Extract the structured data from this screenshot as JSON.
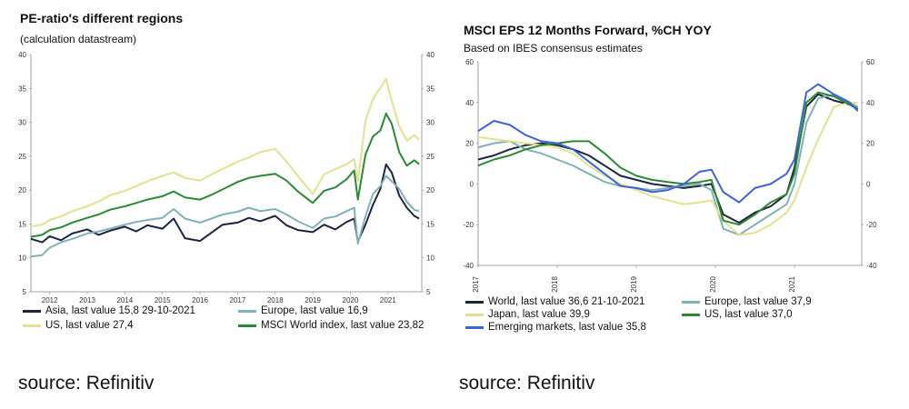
{
  "colors": {
    "asia": "#1c2440",
    "europe": "#7fb1b5",
    "us_left": "#e4e08e",
    "msci_world": "#2a8a33",
    "world": "#1c2440",
    "japan": "#e4e08e",
    "us_right": "#2a8a33",
    "emerging": "#3c64d8"
  },
  "left": {
    "title": "PE-ratio's different regions",
    "subtitle": "(calculation datastream)",
    "source": "source: Refinitiv"
  },
  "right": {
    "title": "MSCI EPS 12 Months Forward, %CH YOY",
    "subtitle": "Based on IBES consensus estimates",
    "source": "source: Refinitiv"
  },
  "chart_data": [
    {
      "type": "line",
      "title": "PE-ratio's different regions",
      "subtitle": "(calculation datastream)",
      "ylim": [
        5,
        40
      ],
      "xlim": [
        2011.5,
        2021.9
      ],
      "y_ticks": [
        5,
        10,
        15,
        20,
        25,
        30,
        35,
        40
      ],
      "x_ticks": [
        2012,
        2013,
        2014,
        2015,
        2016,
        2017,
        2018,
        2019,
        2020,
        2021
      ],
      "y_axis_sides": "both",
      "grid": false,
      "legend_position": "bottom",
      "series": [
        {
          "name": "Asia, last value 15,8 29-10-2021",
          "color_key": "asia",
          "x": [
            2011.5,
            2011.8,
            2012.0,
            2012.3,
            2012.6,
            2013.0,
            2013.3,
            2013.6,
            2014.0,
            2014.3,
            2014.6,
            2015.0,
            2015.3,
            2015.6,
            2016.0,
            2016.3,
            2016.6,
            2017.0,
            2017.3,
            2017.6,
            2018.0,
            2018.3,
            2018.6,
            2019.0,
            2019.3,
            2019.6,
            2019.9,
            2020.1,
            2020.2,
            2020.4,
            2020.6,
            2020.8,
            2020.95,
            2021.1,
            2021.3,
            2021.5,
            2021.7,
            2021.83
          ],
          "y": [
            12.8,
            12.3,
            13.2,
            12.6,
            13.6,
            14.2,
            13.4,
            14.0,
            14.6,
            13.9,
            14.8,
            14.3,
            15.8,
            12.9,
            12.5,
            13.7,
            14.9,
            15.2,
            15.9,
            15.4,
            16.2,
            14.8,
            14.1,
            13.8,
            14.9,
            14.2,
            15.3,
            15.8,
            12.4,
            14.9,
            17.8,
            20.2,
            23.8,
            22.6,
            19.2,
            17.4,
            16.2,
            15.8
          ]
        },
        {
          "name": "Europe, last value 16,9",
          "color_key": "europe",
          "x": [
            2011.5,
            2011.8,
            2012.0,
            2012.3,
            2012.6,
            2013.0,
            2013.3,
            2013.6,
            2014.0,
            2014.3,
            2014.6,
            2015.0,
            2015.3,
            2015.6,
            2016.0,
            2016.3,
            2016.6,
            2017.0,
            2017.3,
            2017.6,
            2018.0,
            2018.3,
            2018.6,
            2019.0,
            2019.3,
            2019.6,
            2019.9,
            2020.1,
            2020.2,
            2020.4,
            2020.6,
            2020.8,
            2020.95,
            2021.1,
            2021.3,
            2021.5,
            2021.7,
            2021.83
          ],
          "y": [
            10.2,
            10.4,
            11.5,
            12.3,
            12.8,
            13.6,
            13.9,
            14.3,
            14.9,
            15.3,
            15.6,
            15.9,
            17.2,
            15.8,
            15.2,
            15.8,
            16.4,
            16.8,
            17.4,
            16.9,
            17.2,
            16.4,
            15.4,
            14.4,
            15.8,
            16.1,
            16.9,
            17.4,
            12.1,
            16.1,
            19.4,
            20.6,
            22.1,
            21.3,
            20.2,
            18.3,
            17.1,
            16.9
          ]
        },
        {
          "name": "US, last value 27,4",
          "color_key": "us_left",
          "x": [
            2011.5,
            2011.8,
            2012.0,
            2012.3,
            2012.6,
            2013.0,
            2013.3,
            2013.6,
            2014.0,
            2014.3,
            2014.6,
            2015.0,
            2015.3,
            2015.6,
            2016.0,
            2016.3,
            2016.6,
            2017.0,
            2017.3,
            2017.6,
            2018.0,
            2018.3,
            2018.6,
            2019.0,
            2019.3,
            2019.6,
            2019.9,
            2020.1,
            2020.2,
            2020.4,
            2020.6,
            2020.8,
            2020.95,
            2021.1,
            2021.3,
            2021.5,
            2021.7,
            2021.83
          ],
          "y": [
            14.6,
            14.9,
            15.6,
            16.1,
            16.9,
            17.6,
            18.3,
            19.2,
            19.9,
            20.6,
            21.3,
            22.1,
            22.6,
            21.8,
            21.4,
            22.3,
            23.1,
            24.2,
            24.8,
            25.6,
            26.1,
            24.2,
            22.1,
            19.4,
            22.3,
            23.1,
            23.8,
            24.6,
            21.3,
            30.2,
            33.4,
            35.1,
            36.4,
            33.2,
            29.4,
            27.3,
            28.1,
            27.4
          ]
        },
        {
          "name": "MSCI World index, last value 23,82",
          "color_key": "msci_world",
          "x": [
            2011.5,
            2011.8,
            2012.0,
            2012.3,
            2012.6,
            2013.0,
            2013.3,
            2013.6,
            2014.0,
            2014.3,
            2014.6,
            2015.0,
            2015.3,
            2015.6,
            2016.0,
            2016.3,
            2016.6,
            2017.0,
            2017.3,
            2017.6,
            2018.0,
            2018.3,
            2018.6,
            2019.0,
            2019.3,
            2019.6,
            2019.9,
            2020.1,
            2020.2,
            2020.4,
            2020.6,
            2020.8,
            2020.95,
            2021.1,
            2021.3,
            2021.5,
            2021.7,
            2021.83
          ],
          "y": [
            13.1,
            13.4,
            14.1,
            14.5,
            15.2,
            15.9,
            16.4,
            17.1,
            17.6,
            18.1,
            18.6,
            19.1,
            19.8,
            18.9,
            18.6,
            19.3,
            20.1,
            21.2,
            21.8,
            22.1,
            22.4,
            21.4,
            19.8,
            18.1,
            19.9,
            20.4,
            21.6,
            22.9,
            18.6,
            25.2,
            27.9,
            28.8,
            31.3,
            29.8,
            25.6,
            23.6,
            24.4,
            23.82
          ]
        }
      ]
    },
    {
      "type": "line",
      "title": "MSCI EPS 12 Months Forward, %CH YOY",
      "subtitle": "Based on IBES consensus estimates",
      "ylim": [
        -40,
        60
      ],
      "xlim": [
        2017.0,
        2021.85
      ],
      "y_ticks": [
        -40,
        -20,
        0,
        20,
        40,
        60
      ],
      "x_ticks": [
        2017,
        2018,
        2019,
        2020,
        2021
      ],
      "y_axis_sides": "both",
      "grid": false,
      "legend_position": "bottom",
      "series": [
        {
          "name": "World, last value 36,6 21-10-2021",
          "color_key": "world",
          "x": [
            2017.0,
            2017.2,
            2017.4,
            2017.6,
            2017.8,
            2018.0,
            2018.2,
            2018.4,
            2018.6,
            2018.8,
            2019.0,
            2019.2,
            2019.4,
            2019.6,
            2019.8,
            2019.95,
            2020.1,
            2020.3,
            2020.5,
            2020.7,
            2020.9,
            2021.0,
            2021.15,
            2021.3,
            2021.5,
            2021.7,
            2021.8
          ],
          "y": [
            12,
            14,
            17,
            19,
            20,
            19,
            17,
            14,
            9,
            4,
            2,
            0,
            -1,
            -2,
            -1,
            0,
            -15,
            -19,
            -14,
            -11,
            -5,
            8,
            38,
            44,
            41,
            39,
            36.6
          ]
        },
        {
          "name": "Europe, last value 37,9",
          "color_key": "europe",
          "x": [
            2017.0,
            2017.2,
            2017.4,
            2017.6,
            2017.8,
            2018.0,
            2018.2,
            2018.4,
            2018.6,
            2018.8,
            2019.0,
            2019.2,
            2019.4,
            2019.6,
            2019.8,
            2019.95,
            2020.1,
            2020.3,
            2020.5,
            2020.7,
            2020.9,
            2021.0,
            2021.15,
            2021.3,
            2021.5,
            2021.7,
            2021.8
          ],
          "y": [
            18,
            20,
            21,
            17,
            15,
            12,
            9,
            5,
            1,
            -1,
            -2,
            -3,
            -2,
            -1,
            0,
            -3,
            -22,
            -25,
            -20,
            -15,
            -10,
            0,
            30,
            42,
            44,
            40,
            37.9
          ]
        },
        {
          "name": "Japan, last value 39,9",
          "color_key": "japan",
          "x": [
            2017.0,
            2017.2,
            2017.4,
            2017.6,
            2017.8,
            2018.0,
            2018.2,
            2018.4,
            2018.6,
            2018.8,
            2019.0,
            2019.2,
            2019.4,
            2019.6,
            2019.8,
            2019.95,
            2020.1,
            2020.3,
            2020.5,
            2020.7,
            2020.9,
            2021.0,
            2021.15,
            2021.3,
            2021.5,
            2021.7,
            2021.8
          ],
          "y": [
            23,
            22,
            21,
            20,
            19,
            18,
            15,
            9,
            4,
            0,
            -3,
            -6,
            -8,
            -10,
            -9,
            -8,
            -18,
            -25,
            -24,
            -20,
            -14,
            -8,
            8,
            22,
            38,
            40,
            39.9
          ]
        },
        {
          "name": "US, last value 37,0",
          "color_key": "us_right",
          "x": [
            2017.0,
            2017.2,
            2017.4,
            2017.6,
            2017.8,
            2018.0,
            2018.2,
            2018.4,
            2018.6,
            2018.8,
            2019.0,
            2019.2,
            2019.4,
            2019.6,
            2019.8,
            2019.95,
            2020.1,
            2020.3,
            2020.5,
            2020.7,
            2020.9,
            2021.0,
            2021.15,
            2021.3,
            2021.5,
            2021.7,
            2021.8
          ],
          "y": [
            9,
            12,
            14,
            17,
            19,
            20,
            21,
            21,
            15,
            8,
            4,
            2,
            1,
            0,
            1,
            2,
            -18,
            -20,
            -15,
            -9,
            -5,
            5,
            40,
            45,
            43,
            39,
            37.0
          ]
        },
        {
          "name": "Emerging markets, last value 35,8",
          "color_key": "emerging",
          "x": [
            2017.0,
            2017.2,
            2017.4,
            2017.6,
            2017.8,
            2018.0,
            2018.2,
            2018.4,
            2018.6,
            2018.8,
            2019.0,
            2019.2,
            2019.4,
            2019.6,
            2019.8,
            2019.95,
            2020.1,
            2020.3,
            2020.5,
            2020.7,
            2020.9,
            2021.0,
            2021.15,
            2021.3,
            2021.5,
            2021.7,
            2021.8
          ],
          "y": [
            26,
            31,
            29,
            24,
            21,
            20,
            17,
            11,
            5,
            -1,
            -2,
            -4,
            -3,
            0,
            6,
            7,
            -4,
            -9,
            -2,
            0,
            5,
            12,
            45,
            49,
            44,
            40,
            35.8
          ]
        }
      ]
    }
  ]
}
